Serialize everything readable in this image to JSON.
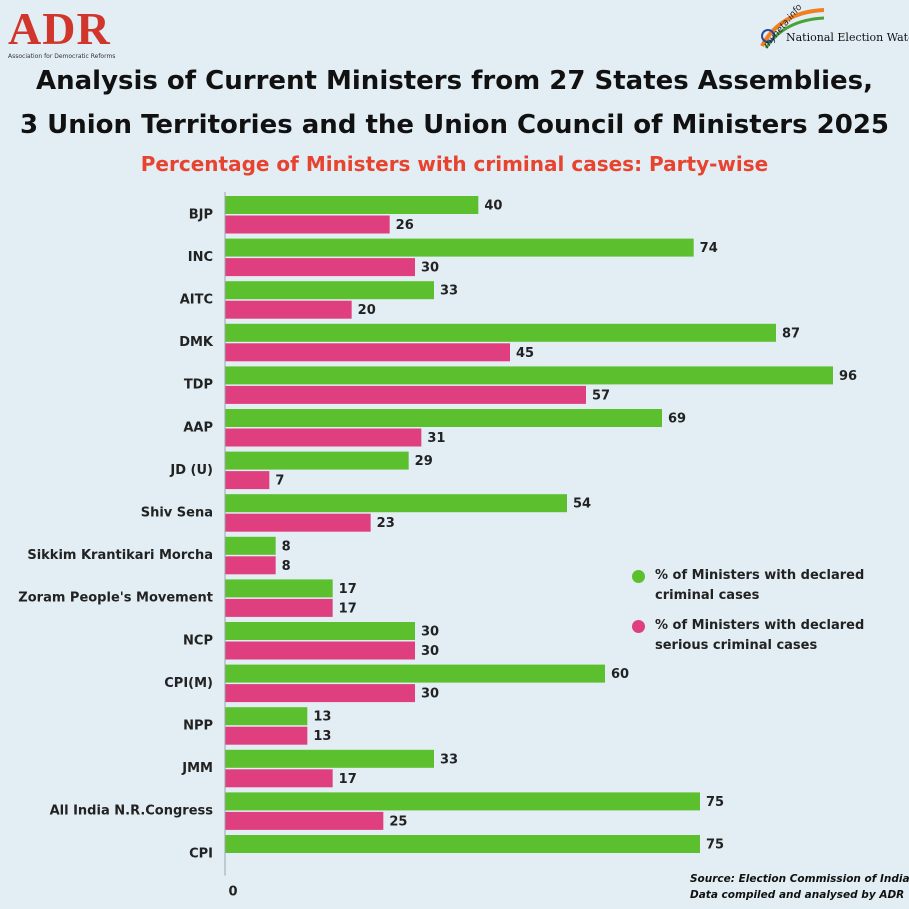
{
  "header": {
    "adr_logo_text": "ADR",
    "adr_logo_subtext": "Association for Democratic Reforms",
    "myneta_site": "myneta.info",
    "myneta_label": "National Election Watch",
    "title_line1": "Analysis of Current Ministers from 27 States Assemblies,",
    "title_line2": "3 Union Territories and the Union Council of Ministers 2025",
    "subtitle": "Percentage of Ministers with criminal cases: Party-wise"
  },
  "colors": {
    "criminal": "#5bbf2e",
    "serious": "#df3f7f",
    "background": "#e2eef4",
    "title": "#111111",
    "subtitle": "#e8432f"
  },
  "legend": {
    "criminal": "% of Ministers with declared criminal cases",
    "serious": "% of Ministers with declared serious criminal cases"
  },
  "source": {
    "line1": "Source: Election Commission of India",
    "line2": "Data compiled and analysed by ADR"
  },
  "chart_data": {
    "type": "bar",
    "orientation": "horizontal",
    "title": "Percentage of Ministers with criminal cases: Party-wise",
    "xlabel": "",
    "ylabel": "",
    "xlim": [
      0,
      96
    ],
    "x_tick_labels": [
      "0"
    ],
    "grid": false,
    "legend_position": "right",
    "categories": [
      "BJP",
      "INC",
      "AITC",
      "DMK",
      "TDP",
      "AAP",
      "JD (U)",
      "Shiv Sena",
      "Sikkim Krantikari Morcha",
      "Zoram People's Movement",
      "NCP",
      "CPI(M)",
      "NPP",
      "JMM",
      "All India N.R.Congress",
      "CPI"
    ],
    "series": [
      {
        "name": "% of Ministers with declared criminal cases",
        "values": [
          40,
          74,
          33,
          87,
          96,
          69,
          29,
          54,
          8,
          17,
          30,
          60,
          13,
          33,
          75,
          75
        ]
      },
      {
        "name": "% of Ministers with declared serious criminal cases",
        "values": [
          26,
          30,
          20,
          45,
          57,
          31,
          7,
          23,
          8,
          17,
          30,
          30,
          13,
          17,
          25,
          null
        ]
      }
    ]
  }
}
